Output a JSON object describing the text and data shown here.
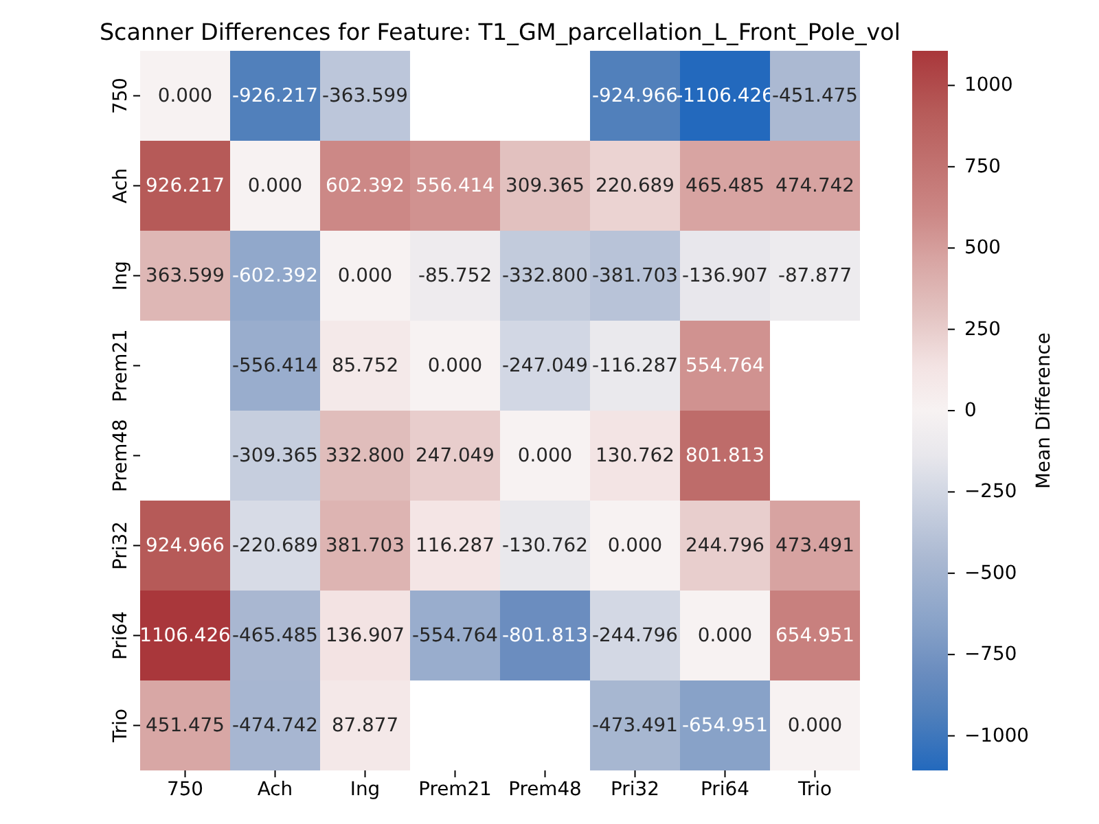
{
  "chart_data": {
    "type": "heatmap",
    "title": "Scanner Differences for Feature: T1_GM_parcellation_L_Front_Pole_vol",
    "clabel": "Mean Difference",
    "categories": [
      "750",
      "Ach",
      "Ing",
      "Prem21",
      "Prem48",
      "Pri32",
      "Pri64",
      "Trio"
    ],
    "y_categories": [
      "750",
      "Ach",
      "Ing",
      "Prem21",
      "Prem48",
      "Pri32",
      "Pri64",
      "Trio"
    ],
    "cells": [
      [
        0,
        -926.217,
        -363.599,
        null,
        null,
        -924.966,
        -1106.426,
        -451.475
      ],
      [
        926.217,
        0,
        602.392,
        556.414,
        309.365,
        220.689,
        465.485,
        474.742
      ],
      [
        363.599,
        -602.392,
        0,
        -85.752,
        -332.8,
        -381.703,
        -136.907,
        -87.877
      ],
      [
        null,
        -556.414,
        85.752,
        0,
        -247.049,
        -116.287,
        554.764,
        null
      ],
      [
        null,
        -309.365,
        332.8,
        247.049,
        0,
        130.762,
        801.813,
        null
      ],
      [
        924.966,
        -220.689,
        381.703,
        116.287,
        -130.762,
        0,
        244.796,
        473.491
      ],
      [
        1106.426,
        -465.485,
        136.907,
        -554.764,
        -801.813,
        -244.796,
        0,
        654.951
      ],
      [
        451.475,
        -474.742,
        87.877,
        null,
        null,
        -473.491,
        -654.951,
        0
      ]
    ],
    "cell_labels": [
      [
        "0.000",
        "-926.217",
        "-363.599",
        null,
        null,
        "-924.966",
        "-1106.426",
        "-451.475"
      ],
      [
        "926.217",
        "0.000",
        "602.392",
        "556.414",
        "309.365",
        "220.689",
        "465.485",
        "474.742"
      ],
      [
        "363.599",
        "-602.392",
        "0.000",
        "-85.752",
        "-332.800",
        "-381.703",
        "-136.907",
        "-87.877"
      ],
      [
        null,
        "-556.414",
        "85.752",
        "0.000",
        "-247.049",
        "-116.287",
        "554.764",
        null
      ],
      [
        null,
        "-309.365",
        "332.800",
        "247.049",
        "0.000",
        "130.762",
        "801.813",
        null
      ],
      [
        "924.966",
        "-220.689",
        "381.703",
        "116.287",
        "-130.762",
        "0.000",
        "244.796",
        "473.491"
      ],
      [
        "1106.426",
        "-465.485",
        "136.907",
        "-554.764",
        "-801.813",
        "-244.796",
        "0.000",
        "654.951"
      ],
      [
        "451.475",
        "-474.742",
        "87.877",
        null,
        null,
        "-473.491",
        "-654.951",
        "0.000"
      ]
    ],
    "clim": [
      -1106.426,
      1106.426
    ],
    "cticks": [
      {
        "value": -1000,
        "label": "−1000"
      },
      {
        "value": -750,
        "label": "−750"
      },
      {
        "value": -500,
        "label": "−500"
      },
      {
        "value": -250,
        "label": "−250"
      },
      0,
      250,
      500,
      750,
      1000
    ]
  }
}
